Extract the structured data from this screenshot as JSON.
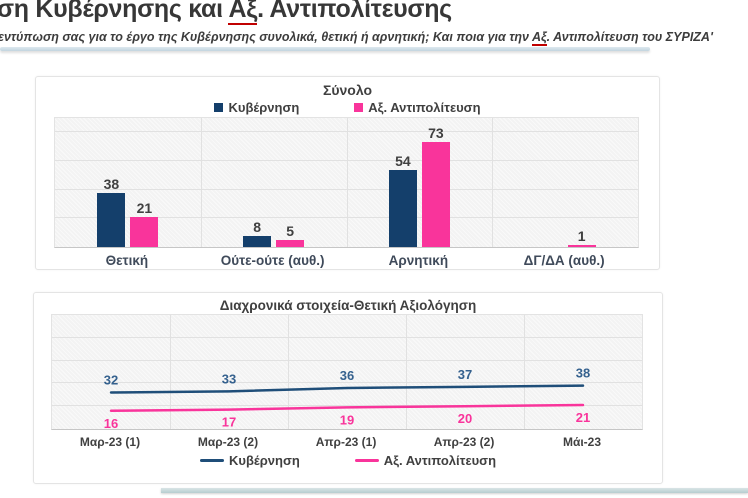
{
  "page": {
    "title_prefix": "ση Κυβέρνησης και ",
    "title_underlined": "Αξ",
    "title_suffix": ". Αντιπολίτευσης",
    "subtitle_prefix": "εντύπωση σας για το έργο της Κυβέρνησης συνολικά, θετική ή αρνητική; Και ποια για την ",
    "subtitle_underlined": "Αξ",
    "subtitle_suffix": ". Αντιπολίτευση του ΣΥΡΙΖΑ'"
  },
  "colors": {
    "government": "#143f6b",
    "opposition": "#f9349b",
    "value_label": "#404040",
    "gov_line_label": "#35618e",
    "red_underline": "#c00000"
  },
  "chart_data": [
    {
      "type": "bar",
      "title": "Σύνολο",
      "categories": [
        "Θετική",
        "Ούτε-ούτε (αυθ.)",
        "Αρνητική",
        "ΔΓ/ΔΑ (αυθ.)"
      ],
      "series": [
        {
          "name": "Κυβέρνηση",
          "color": "#143f6b",
          "values": [
            38,
            8,
            54,
            null
          ]
        },
        {
          "name": "Αξ. Αντιπολίτευση",
          "color": "#f9349b",
          "values": [
            21,
            5,
            73,
            1
          ]
        }
      ],
      "ylim": [
        0,
        90
      ],
      "ytick_step": 20,
      "grid": true,
      "legend_position": "top",
      "value_label_color": "#404040"
    },
    {
      "type": "line",
      "title": "Διαχρονικά στοιχεία-Θετική Αξιολόγηση",
      "categories": [
        "Μαρ-23 (1)",
        "Μαρ-23 (2)",
        "Απρ-23 (1)",
        "Απρ-23 (2)",
        "Μάι-23"
      ],
      "series": [
        {
          "name": "Κυβέρνηση",
          "color": "#1f4e79",
          "label_color": "#35618e",
          "values": [
            32,
            33,
            36,
            37,
            38
          ]
        },
        {
          "name": "Αξ. Αντιπολίτευση",
          "color": "#f9349b",
          "label_color": "#f9349b",
          "values": [
            16,
            17,
            19,
            20,
            21
          ]
        }
      ],
      "ylim": [
        0,
        100
      ],
      "ytick_step": 20,
      "grid": true,
      "legend_position": "bottom"
    }
  ]
}
